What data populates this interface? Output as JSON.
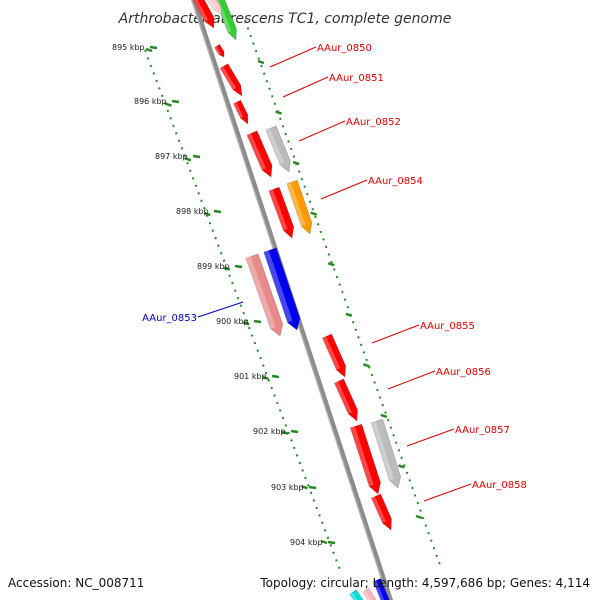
{
  "header": {
    "title": "Arthrobacter aurescens TC1, complete genome"
  },
  "footer": {
    "accession": "Accession: NC_008711",
    "topology": "Topology: circular; Length: 4,597,686 bp; Genes: 4,114"
  },
  "ticks": [
    {
      "label": "895 kbp"
    },
    {
      "label": "896 kbp"
    },
    {
      "label": "897 kbp"
    },
    {
      "label": "898 kbp"
    },
    {
      "label": "899 kbp"
    },
    {
      "label": "900 kbp"
    },
    {
      "label": "901 kbp"
    },
    {
      "label": "902 kbp"
    },
    {
      "label": "903 kbp"
    },
    {
      "label": "904 kbp"
    }
  ],
  "gene_labels": [
    {
      "name": "AAur_0850",
      "color": "#dd0000"
    },
    {
      "name": "AAur_0851",
      "color": "#dd0000"
    },
    {
      "name": "AAur_0852",
      "color": "#dd0000"
    },
    {
      "name": "AAur_0854",
      "color": "#dd0000"
    },
    {
      "name": "AAur_0853",
      "color": "#0000bb"
    },
    {
      "name": "AAur_0855",
      "color": "#dd0000"
    },
    {
      "name": "AAur_0856",
      "color": "#dd0000"
    },
    {
      "name": "AAur_0857",
      "color": "#dd0000"
    },
    {
      "name": "AAur_0858",
      "color": "#dd0000"
    }
  ],
  "colors": {
    "backbone": "#8c8c8c",
    "tick": "#228b22",
    "forward_gene": "#ff0000",
    "reverse_gene_pink": "#e88a8a",
    "blue_gene": "#0000ee",
    "orange_gene": "#ff9900",
    "gray_gene": "#bbbbbb",
    "green_gene": "#33cc33",
    "cyan_gene": "#00dddd"
  }
}
